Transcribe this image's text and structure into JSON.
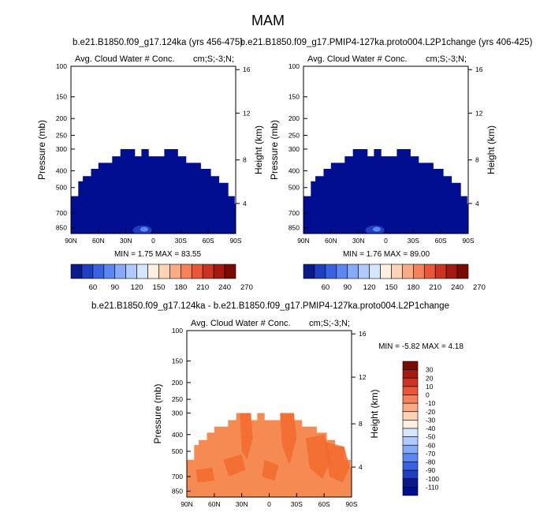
{
  "figure": {
    "title": "MAM"
  },
  "chart_data": [
    {
      "type": "heatmap",
      "title": "b.e21.B1850.f09_g17.124ka (yrs 456-475)",
      "left_label": "Avg. Cloud Water # Conc.",
      "right_label": "cm;S;-3;N;",
      "xlabel": "",
      "ylabel": "Pressure (mb)",
      "ylabel_right": "Height (km)",
      "x_ticks": [
        "90N",
        "60N",
        "30N",
        "0",
        "30S",
        "60S",
        "90S"
      ],
      "y_ticks": [
        "100",
        "150",
        "200",
        "250",
        "300",
        "400",
        "500",
        "700",
        "850"
      ],
      "y_ticks_right": [
        "16",
        "12",
        "8",
        "4"
      ],
      "stats": "MIN =   1.75   MAX =  83.55",
      "colorbar": {
        "orientation": "horizontal",
        "labels": [
          "60",
          "90",
          "120",
          "150",
          "180",
          "210",
          "240",
          "270"
        ],
        "colors": [
          "#0a1a8c",
          "#1f3ec2",
          "#3a62e0",
          "#5c86f0",
          "#86aaf7",
          "#b0cbfb",
          "#d6e6fe",
          "#fdf0e3",
          "#fcd3b6",
          "#f9ac83",
          "#f5805a",
          "#e8573a",
          "#cc3322",
          "#a41a10",
          "#7a0a05"
        ]
      },
      "fill_color": "#000e8f",
      "data_extent": [
        [
          -90,
          920
        ],
        [
          -90,
          560
        ],
        [
          -82,
          560
        ],
        [
          -82,
          460
        ],
        [
          -77,
          460
        ],
        [
          -77,
          430
        ],
        [
          -68,
          430
        ],
        [
          -68,
          390
        ],
        [
          -60,
          390
        ],
        [
          -60,
          360
        ],
        [
          -45,
          360
        ],
        [
          -45,
          330
        ],
        [
          -36,
          330
        ],
        [
          -36,
          300
        ],
        [
          -20,
          300
        ],
        [
          -20,
          330
        ],
        [
          -13,
          330
        ],
        [
          -13,
          300
        ],
        [
          -5,
          300
        ],
        [
          -5,
          330
        ],
        [
          12,
          330
        ],
        [
          12,
          300
        ],
        [
          27,
          300
        ],
        [
          27,
          330
        ],
        [
          36,
          330
        ],
        [
          36,
          360
        ],
        [
          52,
          360
        ],
        [
          52,
          390
        ],
        [
          63,
          390
        ],
        [
          63,
          430
        ],
        [
          72,
          430
        ],
        [
          72,
          470
        ],
        [
          82,
          470
        ],
        [
          82,
          560
        ],
        [
          89,
          560
        ],
        [
          89,
          620
        ],
        [
          90,
          620
        ],
        [
          90,
          920
        ]
      ]
    },
    {
      "type": "heatmap",
      "title": "b.e21.B1850.f09_g17.PMIP4-127ka.proto004.L2P1change (yrs 406-425)",
      "left_label": "Avg. Cloud Water # Conc.",
      "right_label": "cm;S;-3;N;",
      "xlabel": "",
      "ylabel": "Pressure (mb)",
      "ylabel_right": "Height (km)",
      "x_ticks": [
        "90N",
        "60N",
        "30N",
        "0",
        "30S",
        "60S",
        "90S"
      ],
      "y_ticks": [
        "100",
        "150",
        "200",
        "250",
        "300",
        "400",
        "500",
        "700",
        "850"
      ],
      "y_ticks_right": [
        "16",
        "12",
        "8",
        "4"
      ],
      "stats": "MIN =   1.76   MAX =  89.00",
      "colorbar": {
        "orientation": "horizontal",
        "labels": [
          "60",
          "90",
          "120",
          "150",
          "180",
          "210",
          "240",
          "270"
        ],
        "colors": [
          "#0a1a8c",
          "#1f3ec2",
          "#3a62e0",
          "#5c86f0",
          "#86aaf7",
          "#b0cbfb",
          "#d6e6fe",
          "#fdf0e3",
          "#fcd3b6",
          "#f9ac83",
          "#f5805a",
          "#e8573a",
          "#cc3322",
          "#a41a10",
          "#7a0a05"
        ]
      },
      "fill_color": "#000e8f",
      "data_extent": [
        [
          -90,
          920
        ],
        [
          -90,
          560
        ],
        [
          -82,
          560
        ],
        [
          -82,
          460
        ],
        [
          -77,
          460
        ],
        [
          -77,
          430
        ],
        [
          -68,
          430
        ],
        [
          -68,
          390
        ],
        [
          -60,
          390
        ],
        [
          -60,
          360
        ],
        [
          -45,
          360
        ],
        [
          -45,
          330
        ],
        [
          -36,
          330
        ],
        [
          -36,
          300
        ],
        [
          -20,
          300
        ],
        [
          -20,
          330
        ],
        [
          -13,
          330
        ],
        [
          -13,
          300
        ],
        [
          -5,
          300
        ],
        [
          -5,
          330
        ],
        [
          12,
          330
        ],
        [
          12,
          300
        ],
        [
          27,
          300
        ],
        [
          27,
          330
        ],
        [
          36,
          330
        ],
        [
          36,
          360
        ],
        [
          52,
          360
        ],
        [
          52,
          390
        ],
        [
          63,
          390
        ],
        [
          63,
          430
        ],
        [
          72,
          430
        ],
        [
          72,
          470
        ],
        [
          82,
          470
        ],
        [
          82,
          560
        ],
        [
          89,
          560
        ],
        [
          89,
          620
        ],
        [
          90,
          620
        ],
        [
          90,
          920
        ]
      ]
    },
    {
      "type": "heatmap",
      "title": "b.e21.B1850.f09_g17.124ka - b.e21.B1850.f09_g17.PMIP4-127ka.proto004.L2P1change",
      "left_label": "Avg. Cloud Water # Conc.",
      "right_label": "cm;S;-3;N;",
      "xlabel": "",
      "ylabel": "Pressure (mb)",
      "ylabel_right": "Height (km)",
      "x_ticks": [
        "90N",
        "60N",
        "30N",
        "0",
        "30S",
        "60S",
        "90S"
      ],
      "y_ticks": [
        "100",
        "150",
        "200",
        "250",
        "300",
        "400",
        "500",
        "700",
        "850"
      ],
      "y_ticks_right": [
        "16",
        "12",
        "8",
        "4"
      ],
      "stats": "MIN =  -5.82   MAX =   4.18",
      "colorbar": {
        "orientation": "vertical",
        "labels": [
          "30",
          "20",
          "10",
          "0",
          "-10",
          "-20",
          "-30",
          "-40",
          "-50",
          "-60",
          "-70",
          "-80",
          "-90",
          "-100",
          "-110"
        ],
        "colors": [
          "#7a0a05",
          "#a41a10",
          "#cc3322",
          "#e8573a",
          "#f5805a",
          "#f9ac83",
          "#fcd3b6",
          "#fdf0e3",
          "#d6e6fe",
          "#b0cbfb",
          "#86aaf7",
          "#5c86f0",
          "#3a62e0",
          "#1f3ec2",
          "#0a1a8c",
          "#000e8f"
        ]
      },
      "fill_color": "#f58a52",
      "patch_color": "#f26a2e",
      "data_extent": [
        [
          -90,
          920
        ],
        [
          -90,
          560
        ],
        [
          -82,
          560
        ],
        [
          -82,
          460
        ],
        [
          -77,
          460
        ],
        [
          -77,
          430
        ],
        [
          -68,
          430
        ],
        [
          -68,
          390
        ],
        [
          -60,
          390
        ],
        [
          -60,
          360
        ],
        [
          -45,
          360
        ],
        [
          -45,
          330
        ],
        [
          -36,
          330
        ],
        [
          -36,
          300
        ],
        [
          -20,
          300
        ],
        [
          -20,
          330
        ],
        [
          -13,
          330
        ],
        [
          -13,
          300
        ],
        [
          -5,
          300
        ],
        [
          -5,
          330
        ],
        [
          12,
          330
        ],
        [
          12,
          300
        ],
        [
          27,
          300
        ],
        [
          27,
          330
        ],
        [
          36,
          330
        ],
        [
          36,
          360
        ],
        [
          52,
          360
        ],
        [
          52,
          390
        ],
        [
          63,
          390
        ],
        [
          63,
          430
        ],
        [
          72,
          430
        ],
        [
          72,
          470
        ],
        [
          82,
          470
        ],
        [
          82,
          560
        ],
        [
          89,
          560
        ],
        [
          89,
          620
        ],
        [
          90,
          620
        ],
        [
          90,
          920
        ]
      ]
    }
  ]
}
